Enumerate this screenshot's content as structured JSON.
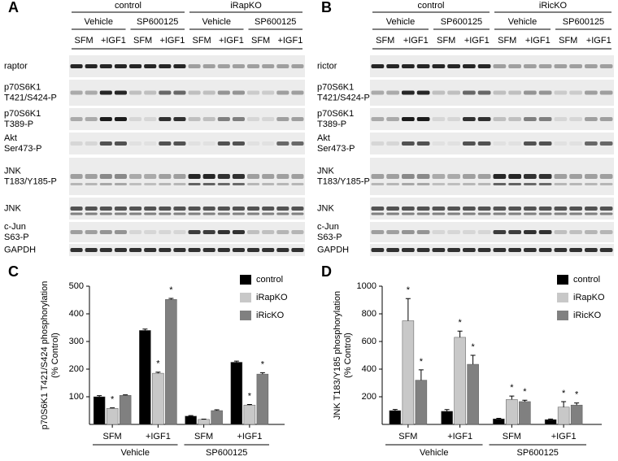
{
  "figure": {
    "panels": [
      {
        "letter": "A",
        "groups": [
          {
            "label": "control",
            "subgroups": [
              {
                "label": "Vehicle",
                "conditions": [
                  "SFM",
                  "+IGF1"
                ]
              },
              {
                "label": "SP600125",
                "conditions": [
                  "SFM",
                  "+IGF1"
                ]
              }
            ]
          },
          {
            "label": "iRapKO",
            "subgroups": [
              {
                "label": "Vehicle",
                "conditions": [
                  "SFM",
                  "+IGF1"
                ]
              },
              {
                "label": "SP600125",
                "conditions": [
                  "SFM",
                  "+IGF1"
                ]
              }
            ]
          }
        ],
        "rows": [
          [
            "raptor"
          ],
          [
            "p70S6K1",
            "T421/S424-P"
          ],
          [
            "p70S6K1",
            "T389-P"
          ],
          [
            "Akt",
            "Ser473-P"
          ],
          [
            "JNK",
            "T183/Y185-P"
          ],
          [
            "JNK"
          ],
          [
            "c-Jun",
            "S63-P"
          ],
          [
            "GAPDH"
          ]
        ]
      },
      {
        "letter": "B",
        "groups": [
          {
            "label": "control",
            "subgroups": [
              {
                "label": "Vehicle",
                "conditions": [
                  "SFM",
                  "+IGF1"
                ]
              },
              {
                "label": "SP600125",
                "conditions": [
                  "SFM",
                  "+IGF1"
                ]
              }
            ]
          },
          {
            "label": "iRicKO",
            "subgroups": [
              {
                "label": "Vehicle",
                "conditions": [
                  "SFM",
                  "+IGF1"
                ]
              },
              {
                "label": "SP600125",
                "conditions": [
                  "SFM",
                  "+IGF1"
                ]
              }
            ]
          }
        ],
        "rows": [
          [
            "rictor"
          ],
          [
            "p70S6K1",
            "T421/S424-P"
          ],
          [
            "p70S6K1",
            "T389-P"
          ],
          [
            "Akt",
            "Ser473-P"
          ],
          [
            "JNK",
            "T183/Y185-P"
          ],
          [
            "JNK"
          ],
          [
            "c-Jun",
            "S63-P"
          ],
          [
            "GAPDH"
          ]
        ]
      }
    ]
  },
  "chart_data": [
    {
      "type": "bar",
      "letter": "C",
      "ylabel": [
        "p70S6K1 T421/S424 phosphorylation",
        "(% Control)"
      ],
      "categories": [
        "SFM",
        "+IGF1",
        "SFM",
        "+IGF1"
      ],
      "group_labels": [
        "Vehicle",
        "SP600125"
      ],
      "ylim": [
        0,
        500
      ],
      "yticks": [
        100,
        200,
        300,
        400,
        500
      ],
      "legend": "upper right",
      "series": [
        {
          "name": "control",
          "color": "#000000",
          "values": [
            100,
            340,
            30,
            225
          ],
          "errors": [
            4,
            5,
            2,
            4
          ],
          "labels": [
            null,
            null,
            null,
            null
          ]
        },
        {
          "name": "iRapKO",
          "color": "#c8c8c8",
          "values": [
            58,
            185,
            18,
            70
          ],
          "errors": [
            2,
            4,
            1,
            2
          ],
          "labels": [
            "*",
            "*",
            null,
            "*"
          ]
        },
        {
          "name": "iRicKO",
          "color": "#808080",
          "values": [
            105,
            452,
            50,
            182
          ],
          "errors": [
            2,
            4,
            3,
            5
          ],
          "labels": [
            null,
            "*",
            null,
            "*"
          ]
        }
      ]
    },
    {
      "type": "bar",
      "letter": "D",
      "ylabel": [
        "JNK T183/Y185 phosphorylation",
        "(% Control)"
      ],
      "categories": [
        "SFM",
        "+IGF1",
        "SFM",
        "+IGF1"
      ],
      "group_labels": [
        "Vehicle",
        "SP600125"
      ],
      "ylim": [
        0,
        1000
      ],
      "yticks": [
        200,
        400,
        600,
        800,
        1000
      ],
      "legend": "upper right",
      "series": [
        {
          "name": "control",
          "color": "#000000",
          "values": [
            100,
            95,
            40,
            35
          ],
          "errors": [
            8,
            12,
            4,
            4
          ],
          "labels": [
            null,
            null,
            null,
            null
          ]
        },
        {
          "name": "iRapKO",
          "color": "#c8c8c8",
          "values": [
            750,
            630,
            180,
            125
          ],
          "errors": [
            160,
            45,
            25,
            40
          ],
          "labels": [
            "*",
            "*",
            "*",
            "*"
          ]
        },
        {
          "name": "iRicKO",
          "color": "#808080",
          "values": [
            320,
            435,
            165,
            140
          ],
          "errors": [
            75,
            65,
            10,
            15
          ],
          "labels": [
            "*",
            "*",
            "*",
            "*"
          ]
        }
      ]
    }
  ]
}
